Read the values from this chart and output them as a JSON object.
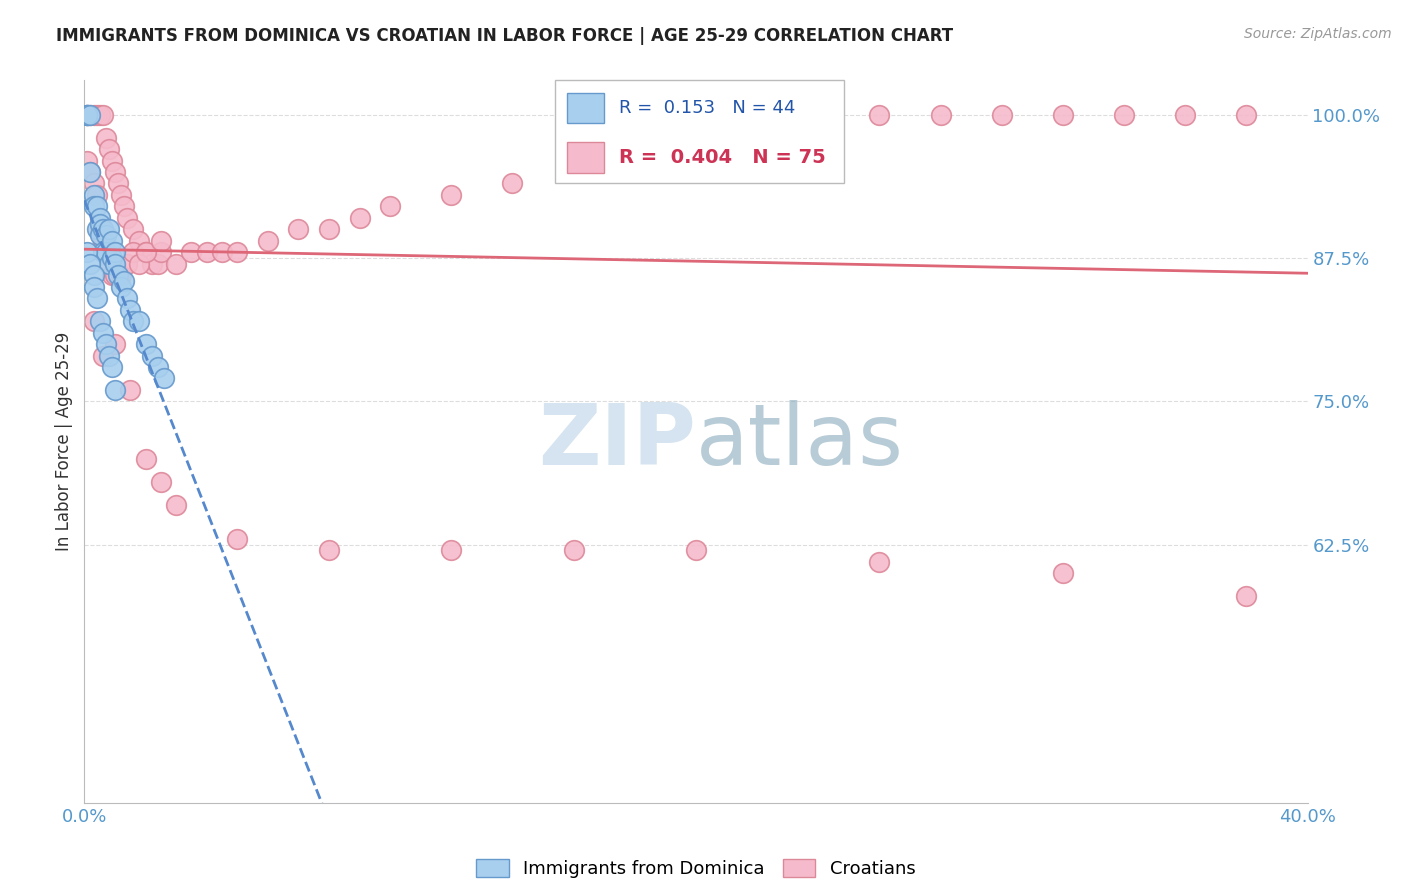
{
  "title": "IMMIGRANTS FROM DOMINICA VS CROATIAN IN LABOR FORCE | AGE 25-29 CORRELATION CHART",
  "source": "Source: ZipAtlas.com",
  "ylabel": "In Labor Force | Age 25-29",
  "xlim": [
    0.0,
    0.4
  ],
  "ylim": [
    0.4,
    1.03
  ],
  "yticks": [
    0.625,
    0.75,
    0.875,
    1.0
  ],
  "ytick_labels": [
    "62.5%",
    "75.0%",
    "87.5%",
    "100.0%"
  ],
  "xticks": [
    0.0,
    0.05,
    0.1,
    0.15,
    0.2,
    0.25,
    0.3,
    0.35,
    0.4
  ],
  "dominica_R": 0.153,
  "dominica_N": 44,
  "croatian_R": 0.404,
  "croatian_N": 75,
  "dominica_color": "#A8CFEE",
  "dominica_edge_color": "#6699CC",
  "croatian_color": "#F5BBCC",
  "croatian_edge_color": "#DD8899",
  "dominica_line_color": "#5588CC",
  "croatian_line_color": "#DD6677",
  "watermark_zip_color": "#C8DCF0",
  "watermark_atlas_color": "#88AABB",
  "title_color": "#222222",
  "axis_label_color": "#333333",
  "tick_color": "#5599CC",
  "grid_color": "#DDDDDD",
  "dominica_x": [
    0.001,
    0.001,
    0.001,
    0.002,
    0.002,
    0.003,
    0.003,
    0.004,
    0.004,
    0.005,
    0.005,
    0.005,
    0.006,
    0.006,
    0.007,
    0.007,
    0.008,
    0.008,
    0.009,
    0.009,
    0.01,
    0.01,
    0.011,
    0.012,
    0.013,
    0.014,
    0.015,
    0.016,
    0.018,
    0.02,
    0.022,
    0.024,
    0.026,
    0.001,
    0.002,
    0.003,
    0.003,
    0.004,
    0.005,
    0.006,
    0.007,
    0.008,
    0.009,
    0.01
  ],
  "dominica_y": [
    1.0,
    1.0,
    1.0,
    1.0,
    0.95,
    0.93,
    0.92,
    0.9,
    0.92,
    0.91,
    0.905,
    0.895,
    0.9,
    0.88,
    0.895,
    0.88,
    0.9,
    0.87,
    0.89,
    0.875,
    0.88,
    0.87,
    0.86,
    0.85,
    0.855,
    0.84,
    0.83,
    0.82,
    0.82,
    0.8,
    0.79,
    0.78,
    0.77,
    0.88,
    0.87,
    0.86,
    0.85,
    0.84,
    0.82,
    0.81,
    0.8,
    0.79,
    0.78,
    0.76
  ],
  "croatian_x": [
    0.001,
    0.002,
    0.003,
    0.004,
    0.005,
    0.006,
    0.007,
    0.008,
    0.009,
    0.01,
    0.011,
    0.012,
    0.013,
    0.014,
    0.016,
    0.018,
    0.02,
    0.022,
    0.024,
    0.025,
    0.001,
    0.002,
    0.003,
    0.004,
    0.005,
    0.006,
    0.007,
    0.008,
    0.009,
    0.01,
    0.012,
    0.014,
    0.016,
    0.018,
    0.02,
    0.025,
    0.03,
    0.035,
    0.04,
    0.045,
    0.05,
    0.06,
    0.07,
    0.08,
    0.09,
    0.1,
    0.12,
    0.14,
    0.16,
    0.18,
    0.2,
    0.22,
    0.24,
    0.26,
    0.28,
    0.3,
    0.32,
    0.34,
    0.36,
    0.38,
    0.003,
    0.006,
    0.01,
    0.015,
    0.02,
    0.025,
    0.03,
    0.05,
    0.08,
    0.12,
    0.16,
    0.2,
    0.26,
    0.32,
    0.38
  ],
  "croatian_y": [
    1.0,
    1.0,
    1.0,
    1.0,
    1.0,
    1.0,
    0.98,
    0.97,
    0.96,
    0.95,
    0.94,
    0.93,
    0.92,
    0.91,
    0.9,
    0.89,
    0.88,
    0.87,
    0.87,
    0.88,
    0.96,
    0.95,
    0.94,
    0.93,
    0.9,
    0.89,
    0.88,
    0.87,
    0.86,
    0.86,
    0.86,
    0.87,
    0.88,
    0.87,
    0.88,
    0.89,
    0.87,
    0.88,
    0.88,
    0.88,
    0.88,
    0.89,
    0.9,
    0.9,
    0.91,
    0.92,
    0.93,
    0.94,
    0.95,
    0.96,
    0.97,
    0.98,
    0.99,
    1.0,
    1.0,
    1.0,
    1.0,
    1.0,
    1.0,
    1.0,
    0.82,
    0.79,
    0.8,
    0.76,
    0.7,
    0.68,
    0.66,
    0.63,
    0.62,
    0.62,
    0.62,
    0.62,
    0.61,
    0.6,
    0.58
  ]
}
